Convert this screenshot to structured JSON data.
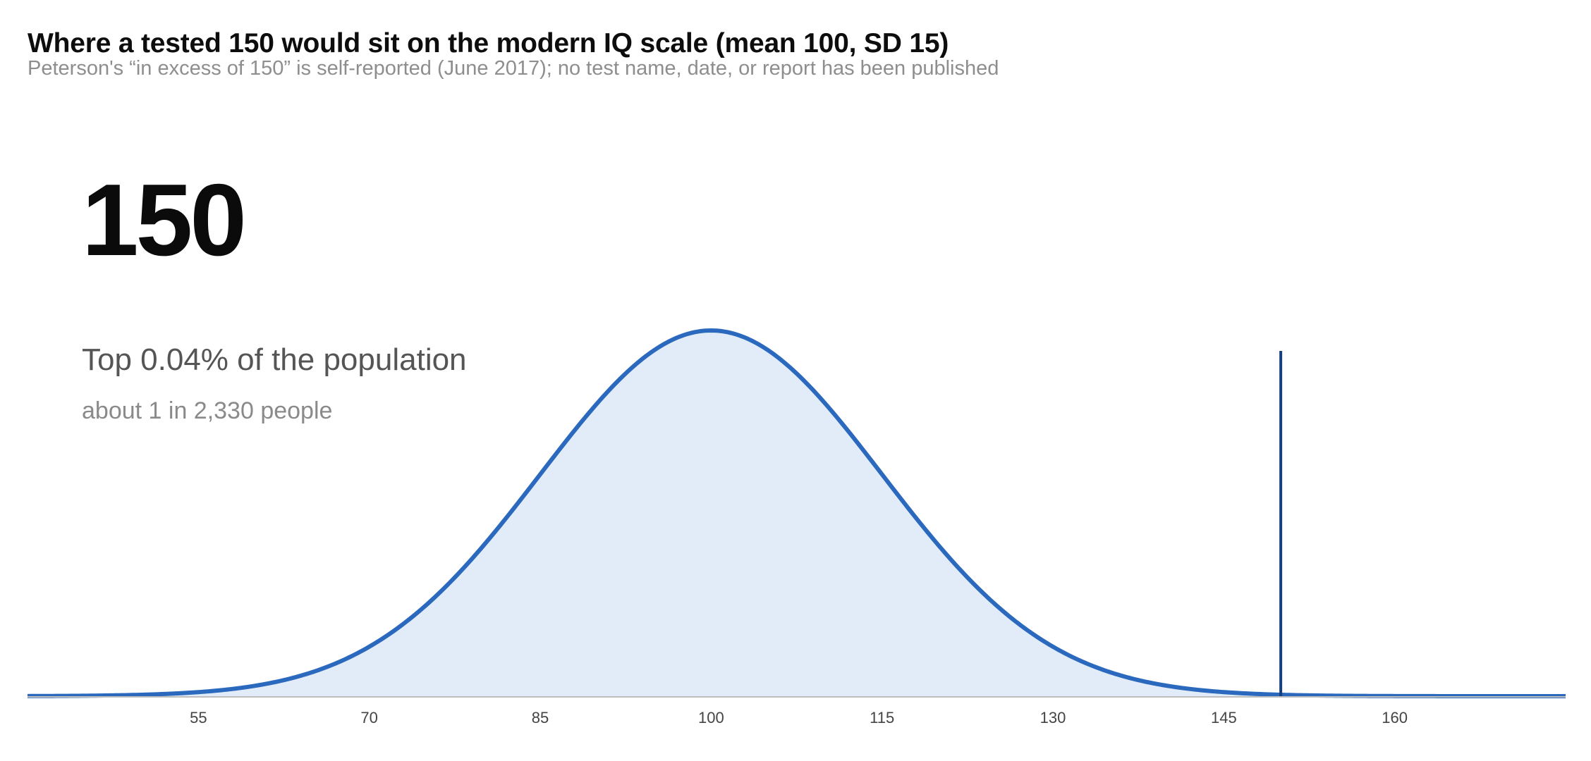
{
  "header": {
    "title": "Where a tested 150 would sit on the modern IQ scale (mean 100, SD 15)",
    "subtitle": "Peterson's “in excess of 150” is self-reported (June 2017); no test name, date, or report has been published"
  },
  "callout": {
    "value": "150",
    "headline": "Top 0.04% of the population",
    "subline": "about 1 in 2,330 people"
  },
  "colors": {
    "curve": "#2a69bd",
    "fill": "#e2ecf8",
    "marker": "#163f7d",
    "axis": "#bdbdbd"
  },
  "chart_data": {
    "type": "area",
    "distribution": "normal",
    "mean": 100,
    "sd": 15,
    "marker_x": 150,
    "xlim": [
      40,
      175
    ],
    "x_ticks": [
      55,
      70,
      85,
      100,
      115,
      130,
      145,
      160
    ],
    "grid": false,
    "legend": "none"
  }
}
